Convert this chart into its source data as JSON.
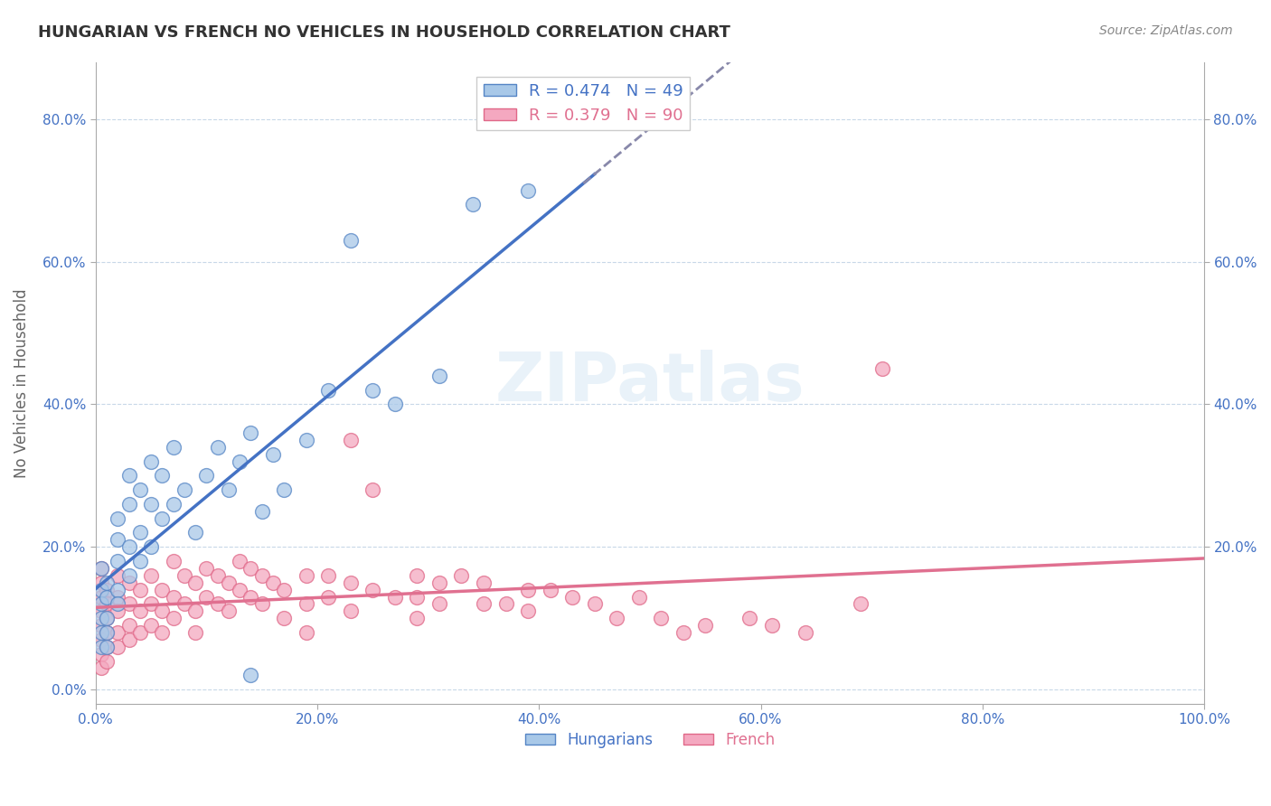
{
  "title": "HUNGARIAN VS FRENCH NO VEHICLES IN HOUSEHOLD CORRELATION CHART",
  "source": "Source: ZipAtlas.com",
  "ylabel": "No Vehicles in Household",
  "xlim": [
    0,
    1.0
  ],
  "ylim": [
    -0.02,
    0.88
  ],
  "xticks": [
    0.0,
    0.2,
    0.4,
    0.6,
    0.8,
    1.0
  ],
  "xtick_labels": [
    "0.0%",
    "20.0%",
    "40.0%",
    "60.0%",
    "80.0%",
    "100.0%"
  ],
  "yticks": [
    0.0,
    0.2,
    0.4,
    0.6,
    0.8
  ],
  "ytick_labels": [
    "0.0%",
    "20.0%",
    "40.0%",
    "60.0%",
    "80.0%"
  ],
  "right_ytick_labels": [
    "80.0%",
    "60.0%",
    "40.0%",
    "20.0%"
  ],
  "right_ytick_positions": [
    0.8,
    0.6,
    0.4,
    0.2
  ],
  "legend_item1": "R = 0.474   N = 49",
  "legend_item2": "R = 0.379   N = 90",
  "hungarian_color": "#a8c8e8",
  "french_color": "#f4a8c0",
  "hungarian_edge_color": "#5585c5",
  "french_edge_color": "#e06888",
  "hungarian_line_color": "#4472c4",
  "french_line_color": "#e07090",
  "hungarian_dash_color": "#8888aa",
  "background_color": "#ffffff",
  "grid_color": "#c8d8e8",
  "watermark": "ZIPatlas",
  "tick_color": "#4472c4",
  "title_color": "#333333",
  "source_color": "#888888",
  "ylabel_color": "#666666",
  "hungarian_points": [
    [
      0.005,
      0.17
    ],
    [
      0.005,
      0.14
    ],
    [
      0.005,
      0.12
    ],
    [
      0.005,
      0.1
    ],
    [
      0.005,
      0.08
    ],
    [
      0.005,
      0.06
    ],
    [
      0.01,
      0.15
    ],
    [
      0.01,
      0.13
    ],
    [
      0.01,
      0.1
    ],
    [
      0.01,
      0.08
    ],
    [
      0.01,
      0.06
    ],
    [
      0.02,
      0.24
    ],
    [
      0.02,
      0.21
    ],
    [
      0.02,
      0.18
    ],
    [
      0.02,
      0.14
    ],
    [
      0.02,
      0.12
    ],
    [
      0.03,
      0.3
    ],
    [
      0.03,
      0.26
    ],
    [
      0.03,
      0.2
    ],
    [
      0.03,
      0.16
    ],
    [
      0.04,
      0.28
    ],
    [
      0.04,
      0.22
    ],
    [
      0.04,
      0.18
    ],
    [
      0.05,
      0.32
    ],
    [
      0.05,
      0.26
    ],
    [
      0.05,
      0.2
    ],
    [
      0.06,
      0.3
    ],
    [
      0.06,
      0.24
    ],
    [
      0.07,
      0.34
    ],
    [
      0.07,
      0.26
    ],
    [
      0.08,
      0.28
    ],
    [
      0.09,
      0.22
    ],
    [
      0.1,
      0.3
    ],
    [
      0.11,
      0.34
    ],
    [
      0.12,
      0.28
    ],
    [
      0.13,
      0.32
    ],
    [
      0.14,
      0.36
    ],
    [
      0.15,
      0.25
    ],
    [
      0.16,
      0.33
    ],
    [
      0.17,
      0.28
    ],
    [
      0.19,
      0.35
    ],
    [
      0.21,
      0.42
    ],
    [
      0.23,
      0.63
    ],
    [
      0.25,
      0.42
    ],
    [
      0.27,
      0.4
    ],
    [
      0.31,
      0.44
    ],
    [
      0.34,
      0.68
    ],
    [
      0.39,
      0.7
    ],
    [
      0.14,
      0.02
    ]
  ],
  "french_points": [
    [
      0.005,
      0.17
    ],
    [
      0.005,
      0.15
    ],
    [
      0.005,
      0.13
    ],
    [
      0.005,
      0.11
    ],
    [
      0.005,
      0.09
    ],
    [
      0.005,
      0.07
    ],
    [
      0.005,
      0.05
    ],
    [
      0.005,
      0.03
    ],
    [
      0.01,
      0.14
    ],
    [
      0.01,
      0.12
    ],
    [
      0.01,
      0.1
    ],
    [
      0.01,
      0.08
    ],
    [
      0.01,
      0.06
    ],
    [
      0.01,
      0.04
    ],
    [
      0.02,
      0.16
    ],
    [
      0.02,
      0.13
    ],
    [
      0.02,
      0.11
    ],
    [
      0.02,
      0.08
    ],
    [
      0.02,
      0.06
    ],
    [
      0.03,
      0.15
    ],
    [
      0.03,
      0.12
    ],
    [
      0.03,
      0.09
    ],
    [
      0.03,
      0.07
    ],
    [
      0.04,
      0.14
    ],
    [
      0.04,
      0.11
    ],
    [
      0.04,
      0.08
    ],
    [
      0.05,
      0.16
    ],
    [
      0.05,
      0.12
    ],
    [
      0.05,
      0.09
    ],
    [
      0.06,
      0.14
    ],
    [
      0.06,
      0.11
    ],
    [
      0.06,
      0.08
    ],
    [
      0.07,
      0.18
    ],
    [
      0.07,
      0.13
    ],
    [
      0.07,
      0.1
    ],
    [
      0.08,
      0.16
    ],
    [
      0.08,
      0.12
    ],
    [
      0.09,
      0.15
    ],
    [
      0.09,
      0.11
    ],
    [
      0.09,
      0.08
    ],
    [
      0.1,
      0.17
    ],
    [
      0.1,
      0.13
    ],
    [
      0.11,
      0.16
    ],
    [
      0.11,
      0.12
    ],
    [
      0.12,
      0.15
    ],
    [
      0.12,
      0.11
    ],
    [
      0.13,
      0.18
    ],
    [
      0.13,
      0.14
    ],
    [
      0.14,
      0.17
    ],
    [
      0.14,
      0.13
    ],
    [
      0.15,
      0.16
    ],
    [
      0.15,
      0.12
    ],
    [
      0.16,
      0.15
    ],
    [
      0.17,
      0.14
    ],
    [
      0.17,
      0.1
    ],
    [
      0.19,
      0.16
    ],
    [
      0.19,
      0.12
    ],
    [
      0.21,
      0.16
    ],
    [
      0.21,
      0.13
    ],
    [
      0.23,
      0.35
    ],
    [
      0.23,
      0.15
    ],
    [
      0.23,
      0.11
    ],
    [
      0.25,
      0.28
    ],
    [
      0.25,
      0.14
    ],
    [
      0.27,
      0.13
    ],
    [
      0.29,
      0.16
    ],
    [
      0.29,
      0.13
    ],
    [
      0.29,
      0.1
    ],
    [
      0.31,
      0.15
    ],
    [
      0.31,
      0.12
    ],
    [
      0.33,
      0.16
    ],
    [
      0.35,
      0.15
    ],
    [
      0.35,
      0.12
    ],
    [
      0.37,
      0.12
    ],
    [
      0.39,
      0.14
    ],
    [
      0.39,
      0.11
    ],
    [
      0.41,
      0.14
    ],
    [
      0.43,
      0.13
    ],
    [
      0.45,
      0.12
    ],
    [
      0.47,
      0.1
    ],
    [
      0.49,
      0.13
    ],
    [
      0.51,
      0.1
    ],
    [
      0.53,
      0.08
    ],
    [
      0.55,
      0.09
    ],
    [
      0.59,
      0.1
    ],
    [
      0.61,
      0.09
    ],
    [
      0.64,
      0.08
    ],
    [
      0.69,
      0.12
    ],
    [
      0.71,
      0.45
    ],
    [
      0.19,
      0.08
    ]
  ]
}
